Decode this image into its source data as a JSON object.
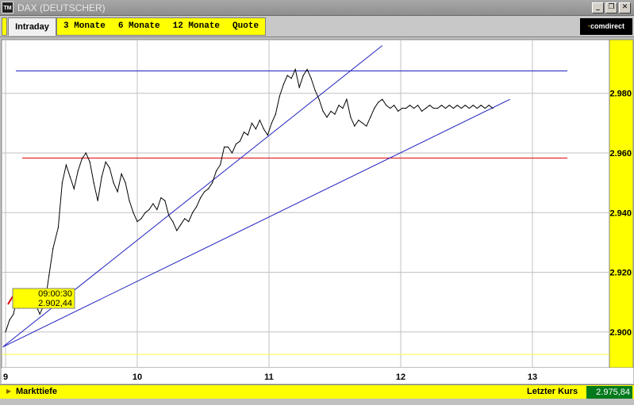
{
  "window": {
    "logo_text": "TM",
    "title": "DAX (DEUTSCHER)",
    "minimize_label": "_",
    "restore_label": "❐",
    "close_label": "✕"
  },
  "tabs": {
    "active": "Intraday",
    "others": [
      "3 Monate",
      "6 Monate",
      "12 Monate",
      "Quote"
    ]
  },
  "brand": {
    "prefix": "·",
    "name": "comdirect"
  },
  "tooltip": {
    "time": "09:00:30",
    "value": "2.902,44"
  },
  "status": {
    "markttiefe": "Markttiefe",
    "letzter_kurs_label": "Letzter Kurs",
    "letzter_kurs_value": "2.975,84"
  },
  "colors": {
    "plot_bg": "#ffffff",
    "axis_bg": "#ffff00",
    "price_line": "#000000",
    "trend_line": "#2020c0",
    "support_line": "#e00000",
    "baseline": "#ffff40",
    "grid": "#c0c0c0",
    "last_price_bg": "#007a1c"
  },
  "chart_data": {
    "type": "line",
    "x_ticks": [
      "9",
      "10",
      "11",
      "12",
      "13"
    ],
    "y_ticks": [
      "2.900",
      "2.920",
      "2.940",
      "2.960",
      "2.980"
    ],
    "xlim": [
      9.0,
      13.6
    ],
    "ylim": [
      2888,
      2998
    ],
    "series": [
      {
        "x": [
          9.0,
          9.03,
          9.06,
          9.08,
          9.1,
          9.12,
          9.15,
          9.18,
          9.2,
          9.23,
          9.26,
          9.3,
          9.33,
          9.36,
          9.4,
          9.43,
          9.46,
          9.49,
          9.52,
          9.55,
          9.58,
          9.61,
          9.64,
          9.67,
          9.7,
          9.73,
          9.76,
          9.79,
          9.82,
          9.85,
          9.88,
          9.91,
          9.94,
          9.97,
          10.0,
          10.03,
          10.06,
          10.09,
          10.12,
          10.15,
          10.18,
          10.21,
          10.24,
          10.27,
          10.3,
          10.33,
          10.36,
          10.39,
          10.42,
          10.45,
          10.48,
          10.51,
          10.54,
          10.57,
          10.6,
          10.63,
          10.66,
          10.69,
          10.72,
          10.75,
          10.78,
          10.81,
          10.84,
          10.87,
          10.9,
          10.93,
          10.96,
          10.99,
          11.02,
          11.05,
          11.08,
          11.11,
          11.14,
          11.17,
          11.2,
          11.23,
          11.26,
          11.29,
          11.32,
          11.35,
          11.38,
          11.41,
          11.44,
          11.47,
          11.5,
          11.53,
          11.56,
          11.59,
          11.62,
          11.65,
          11.68,
          11.71,
          11.74,
          11.77,
          11.8,
          11.83,
          11.86,
          11.89,
          11.92,
          11.95,
          11.98,
          12.01,
          12.04,
          12.07,
          12.1,
          12.13,
          12.16,
          12.19,
          12.22,
          12.25,
          12.28,
          12.31,
          12.34,
          12.37,
          12.4,
          12.43,
          12.46,
          12.49,
          12.52,
          12.55,
          12.58,
          12.61,
          12.64,
          12.67,
          12.7
        ],
        "y": [
          2900,
          2904,
          2906,
          2910,
          2908,
          2912,
          2910,
          2908,
          2911,
          2909,
          2906,
          2910,
          2919,
          2928,
          2935,
          2950,
          2956,
          2952,
          2948,
          2954,
          2958,
          2960,
          2957,
          2950,
          2944,
          2952,
          2957,
          2955,
          2950,
          2947,
          2953,
          2950,
          2944,
          2940,
          2937,
          2938,
          2940,
          2941,
          2943,
          2941,
          2945,
          2944,
          2939,
          2937,
          2934,
          2936,
          2938,
          2937,
          2940,
          2942,
          2945,
          2947,
          2948,
          2950,
          2954,
          2956,
          2962,
          2962,
          2960,
          2963,
          2964,
          2967,
          2966,
          2970,
          2968,
          2971,
          2968,
          2966,
          2970,
          2973,
          2979,
          2983,
          2986,
          2985,
          2988,
          2982,
          2986,
          2988,
          2985,
          2981,
          2978,
          2974,
          2972,
          2974,
          2973,
          2976,
          2975,
          2978,
          2972,
          2969,
          2971,
          2970,
          2969,
          2972,
          2975,
          2977,
          2978,
          2976,
          2975,
          2976,
          2974,
          2975,
          2975,
          2976,
          2975,
          2976,
          2974,
          2975,
          2976,
          2975,
          2975,
          2976,
          2975,
          2976,
          2975,
          2976,
          2975,
          2976,
          2975,
          2976,
          2975,
          2976,
          2975,
          2976,
          2975
        ]
      }
    ],
    "lines": {
      "resistance": 2987.5,
      "support": 2958.3,
      "baseline": 2892.5,
      "upper_trend": [
        [
          8.98,
          2895
        ],
        [
          11.86,
          2996
        ]
      ],
      "lower_trend": [
        [
          8.98,
          2895
        ],
        [
          12.83,
          2978
        ]
      ]
    }
  }
}
